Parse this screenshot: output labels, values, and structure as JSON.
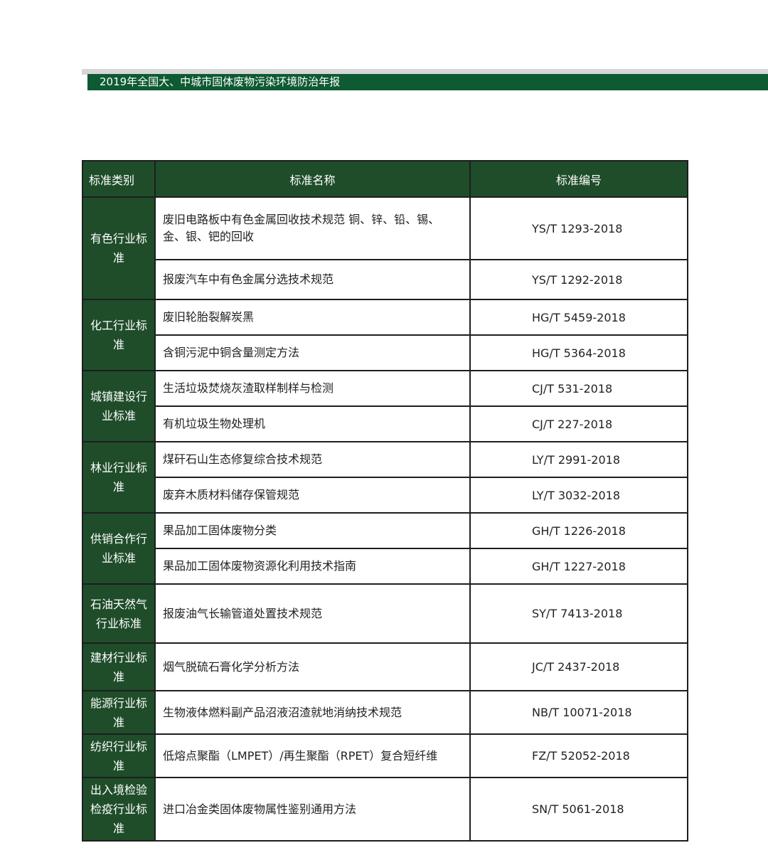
{
  "header": {
    "title": "2019年全国大、中城市固体废物污染环境防治年报"
  },
  "colors": {
    "header_bar": "#0e5a33",
    "table_header": "#1f4d2a"
  },
  "table": {
    "columns": [
      "标准类别",
      "标准名称",
      "标准编号"
    ],
    "groups": [
      {
        "category": "有色行业标准",
        "rows": [
          {
            "name": "废旧电路板中有色金属回收技术规范 铜、锌、铅、锡、金、银、钯的回收",
            "code": "YS/T 1293-2018"
          },
          {
            "name": "报废汽车中有色金属分选技术规范",
            "code": "YS/T 1292-2018"
          }
        ]
      },
      {
        "category": "化工行业标准",
        "rows": [
          {
            "name": "废旧轮胎裂解炭黑",
            "code": "HG/T 5459-2018"
          },
          {
            "name": "含铜污泥中铜含量测定方法",
            "code": "HG/T 5364-2018"
          }
        ]
      },
      {
        "category": "城镇建设行业标准",
        "rows": [
          {
            "name": "生活垃圾焚烧灰渣取样制样与检测",
            "code": "CJ/T 531-2018"
          },
          {
            "name": "有机垃圾生物处理机",
            "code": "CJ/T 227-2018"
          }
        ]
      },
      {
        "category": "林业行业标准",
        "rows": [
          {
            "name": "煤矸石山生态修复综合技术规范",
            "code": "LY/T 2991-2018"
          },
          {
            "name": "废弃木质材料储存保管规范",
            "code": "LY/T 3032-2018"
          }
        ]
      },
      {
        "category": "供销合作行业标准",
        "rows": [
          {
            "name": "果品加工固体废物分类",
            "code": "GH/T 1226-2018"
          },
          {
            "name": "果品加工固体废物资源化利用技术指南",
            "code": "GH/T 1227-2018"
          }
        ]
      },
      {
        "category": "石油天然气行业标准",
        "rows": [
          {
            "name": "报废油气长输管道处置技术规范",
            "code": "SY/T 7413-2018"
          }
        ]
      },
      {
        "category": "建材行业标准",
        "rows": [
          {
            "name": "烟气脱硫石膏化学分析方法",
            "code": "JC/T 2437-2018"
          }
        ]
      },
      {
        "category": "能源行业标准",
        "rows": [
          {
            "name": "生物液体燃料副产品沼液沼渣就地消纳技术规范",
            "code": "NB/T 10071-2018"
          }
        ]
      },
      {
        "category": "纺织行业标准",
        "rows": [
          {
            "name": "低熔点聚酯（LMPET）/再生聚酯（RPET）复合短纤维",
            "code": "FZ/T 52052-2018"
          }
        ]
      },
      {
        "category": "出入境检验检疫行业标准",
        "rows": [
          {
            "name": "进口冶金类固体废物属性鉴别通用方法",
            "code": "SN/T 5061-2018"
          }
        ]
      }
    ]
  }
}
